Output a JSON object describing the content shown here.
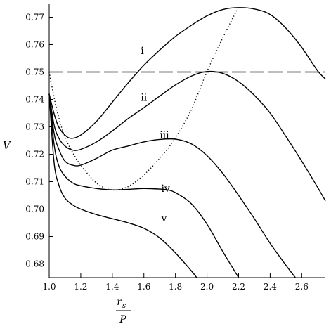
{
  "chart_data": {
    "type": "line",
    "title": "",
    "xlabel": {
      "numerator": "r",
      "subscript": "s",
      "denominator": "P"
    },
    "ylabel": "V",
    "xlim": [
      1.0,
      2.75
    ],
    "ylim": [
      0.675,
      0.775
    ],
    "xticks": [
      "1.0",
      "1.2",
      "1.4",
      "1.6",
      "1.8",
      "2.0",
      "2.2",
      "2.4",
      "2.6"
    ],
    "yticks": [
      "0.68",
      "0.69",
      "0.70",
      "0.71",
      "0.72",
      "0.73",
      "0.74",
      "0.75",
      "0.76",
      "0.77"
    ],
    "grid": false,
    "legend": "none",
    "reference_line": {
      "y": 0.75,
      "style": "dashed"
    },
    "series": [
      {
        "label": "i",
        "label_pos": [
          1.58,
          0.7565
        ],
        "x": [
          1.0,
          1.03,
          1.06,
          1.1,
          1.14,
          1.2,
          1.3,
          1.4,
          1.5,
          1.6,
          1.7,
          1.8,
          1.9,
          2.0,
          2.1,
          2.2,
          2.3,
          2.4,
          2.5,
          2.6,
          2.7,
          2.75
        ],
        "y": [
          0.742,
          0.735,
          0.73,
          0.727,
          0.7258,
          0.727,
          0.732,
          0.739,
          0.746,
          0.7525,
          0.758,
          0.763,
          0.767,
          0.7705,
          0.7728,
          0.7735,
          0.773,
          0.771,
          0.766,
          0.759,
          0.7505,
          0.7475
        ]
      },
      {
        "label": "ii",
        "label_pos": [
          1.58,
          0.7395
        ],
        "x": [
          1.0,
          1.03,
          1.06,
          1.1,
          1.15,
          1.2,
          1.3,
          1.4,
          1.5,
          1.6,
          1.7,
          1.8,
          1.9,
          2.0,
          2.1,
          2.2,
          2.3,
          2.4,
          2.5,
          2.6,
          2.7,
          2.75
        ],
        "y": [
          0.742,
          0.731,
          0.726,
          0.723,
          0.7215,
          0.7218,
          0.7245,
          0.7285,
          0.733,
          0.737,
          0.7412,
          0.7453,
          0.7485,
          0.7502,
          0.7495,
          0.7465,
          0.7415,
          0.735,
          0.7265,
          0.7175,
          0.708,
          0.703
        ]
      },
      {
        "label": "iii",
        "label_pos": [
          1.7,
          0.7258
        ],
        "x": [
          1.0,
          1.03,
          1.06,
          1.1,
          1.15,
          1.2,
          1.3,
          1.4,
          1.5,
          1.6,
          1.7,
          1.8,
          1.9,
          2.0,
          2.1,
          2.2,
          2.3,
          2.4,
          2.5,
          2.56
        ],
        "y": [
          0.742,
          0.728,
          0.722,
          0.7175,
          0.716,
          0.716,
          0.7185,
          0.7215,
          0.723,
          0.7245,
          0.7254,
          0.7255,
          0.7238,
          0.7195,
          0.713,
          0.705,
          0.6965,
          0.6875,
          0.6795,
          0.675
        ]
      },
      {
        "label": "iv",
        "label_pos": [
          1.71,
          0.7063
        ],
        "x": [
          1.0,
          1.03,
          1.06,
          1.1,
          1.15,
          1.2,
          1.3,
          1.4,
          1.5,
          1.6,
          1.7,
          1.75,
          1.8,
          1.9,
          2.0,
          2.1,
          2.2
        ],
        "y": [
          0.742,
          0.724,
          0.716,
          0.712,
          0.7095,
          0.7085,
          0.7075,
          0.707,
          0.7072,
          0.7075,
          0.7073,
          0.707,
          0.706,
          0.702,
          0.6945,
          0.6845,
          0.675
        ]
      },
      {
        "label": "v",
        "label_pos": [
          1.71,
          0.6955
        ],
        "x": [
          1.0,
          1.03,
          1.06,
          1.1,
          1.15,
          1.2,
          1.3,
          1.4,
          1.5,
          1.6,
          1.7,
          1.8,
          1.9,
          1.935
        ],
        "y": [
          0.742,
          0.7175,
          0.709,
          0.704,
          0.7015,
          0.7,
          0.698,
          0.6965,
          0.695,
          0.693,
          0.6895,
          0.684,
          0.6775,
          0.675
        ]
      },
      {
        "label": "",
        "style": "dotted",
        "x": [
          1.0,
          1.03,
          1.06,
          1.1,
          1.15,
          1.2,
          1.3,
          1.4,
          1.5,
          1.6,
          1.7,
          1.8,
          1.9,
          2.0,
          2.1,
          2.2
        ],
        "y": [
          0.75,
          0.741,
          0.7335,
          0.7262,
          0.7205,
          0.716,
          0.7095,
          0.707,
          0.7082,
          0.7125,
          0.7185,
          0.726,
          0.7362,
          0.7502,
          0.7625,
          0.7738
        ]
      }
    ]
  }
}
